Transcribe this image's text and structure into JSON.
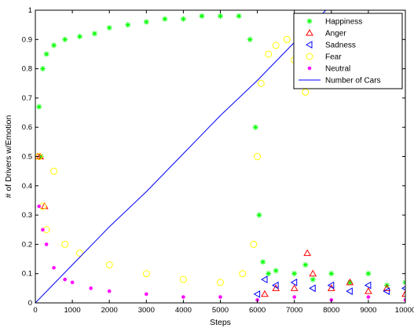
{
  "chart_data": {
    "type": "scatter",
    "title": "",
    "xlabel": "Steps",
    "ylabel": "# of Drivers w/Emotion",
    "xlim": [
      0,
      10000
    ],
    "ylim": [
      0,
      1
    ],
    "xticks": [
      "0",
      "1000",
      "2000",
      "3000",
      "4000",
      "5000",
      "6000",
      "7000",
      "8000",
      "9000",
      "10000"
    ],
    "yticks": [
      "0",
      "0.1",
      "0.2",
      "0.3",
      "0.4",
      "0.5",
      "0.6",
      "0.7",
      "0.8",
      "0.9",
      "1"
    ],
    "grid": false,
    "legend_position": "top-right",
    "series": [
      {
        "name": "Happiness",
        "marker": "asterisk",
        "color": "#00ff00",
        "x": [
          100,
          150,
          200,
          300,
          500,
          800,
          1200,
          1600,
          2000,
          2500,
          3000,
          3500,
          4000,
          4500,
          5000,
          5500,
          5800,
          5950,
          6050,
          6150,
          6300,
          6500,
          7000,
          7300,
          7500,
          8000,
          8500,
          9000,
          9500,
          10000
        ],
        "y": [
          0.67,
          0.5,
          0.8,
          0.85,
          0.88,
          0.9,
          0.91,
          0.92,
          0.94,
          0.95,
          0.96,
          0.97,
          0.97,
          0.98,
          0.98,
          0.98,
          0.9,
          0.6,
          0.3,
          0.14,
          0.1,
          0.11,
          0.1,
          0.13,
          0.08,
          0.1,
          0.07,
          0.1,
          0.06,
          0.07
        ]
      },
      {
        "name": "Anger",
        "marker": "triangle-up",
        "color": "#ff0000",
        "x": [
          60,
          130,
          250,
          6200,
          6500,
          7000,
          7350,
          7500,
          8000,
          8500,
          9000,
          9500,
          10000
        ],
        "y": [
          0.5,
          0.5,
          0.33,
          0.03,
          0.05,
          0.05,
          0.17,
          0.1,
          0.05,
          0.07,
          0.04,
          0.05,
          0.03
        ]
      },
      {
        "name": "Sadness",
        "marker": "triangle-left",
        "color": "#0000ff",
        "x": [
          6000,
          6200,
          6500,
          7000,
          7500,
          8000,
          8500,
          9000,
          9500,
          10000
        ],
        "y": [
          0.03,
          0.08,
          0.06,
          0.07,
          0.05,
          0.06,
          0.04,
          0.06,
          0.04,
          0.05
        ]
      },
      {
        "name": "Fear",
        "marker": "circle",
        "color": "#ffff00",
        "x": [
          100,
          200,
          300,
          500,
          800,
          1200,
          2000,
          3000,
          4000,
          5000,
          5600,
          5900,
          6000,
          6100,
          6300,
          6500,
          6800,
          7000,
          7300,
          7500
        ],
        "y": [
          0.5,
          0.33,
          0.25,
          0.45,
          0.2,
          0.17,
          0.13,
          0.1,
          0.08,
          0.07,
          0.1,
          0.2,
          0.5,
          0.75,
          0.85,
          0.88,
          0.9,
          0.83,
          0.72,
          0.8
        ]
      },
      {
        "name": "Neutral",
        "marker": "dot",
        "color": "#ff00ff",
        "x": [
          100,
          200,
          300,
          500,
          800,
          1000,
          1500,
          2000,
          3000,
          4000,
          5000,
          6000,
          7000,
          8000,
          9000,
          10000
        ],
        "y": [
          0.33,
          0.25,
          0.2,
          0.12,
          0.08,
          0.07,
          0.05,
          0.04,
          0.03,
          0.02,
          0.02,
          0.01,
          0.02,
          0.01,
          0.02,
          0.01
        ]
      },
      {
        "name": "Number of Cars",
        "marker": "line",
        "color": "#0000ff",
        "x": [
          0,
          1000,
          2000,
          3000,
          4000,
          5000,
          6000,
          7000,
          7850
        ],
        "y": [
          0,
          0.13,
          0.26,
          0.38,
          0.51,
          0.64,
          0.76,
          0.89,
          1.0
        ]
      }
    ]
  }
}
